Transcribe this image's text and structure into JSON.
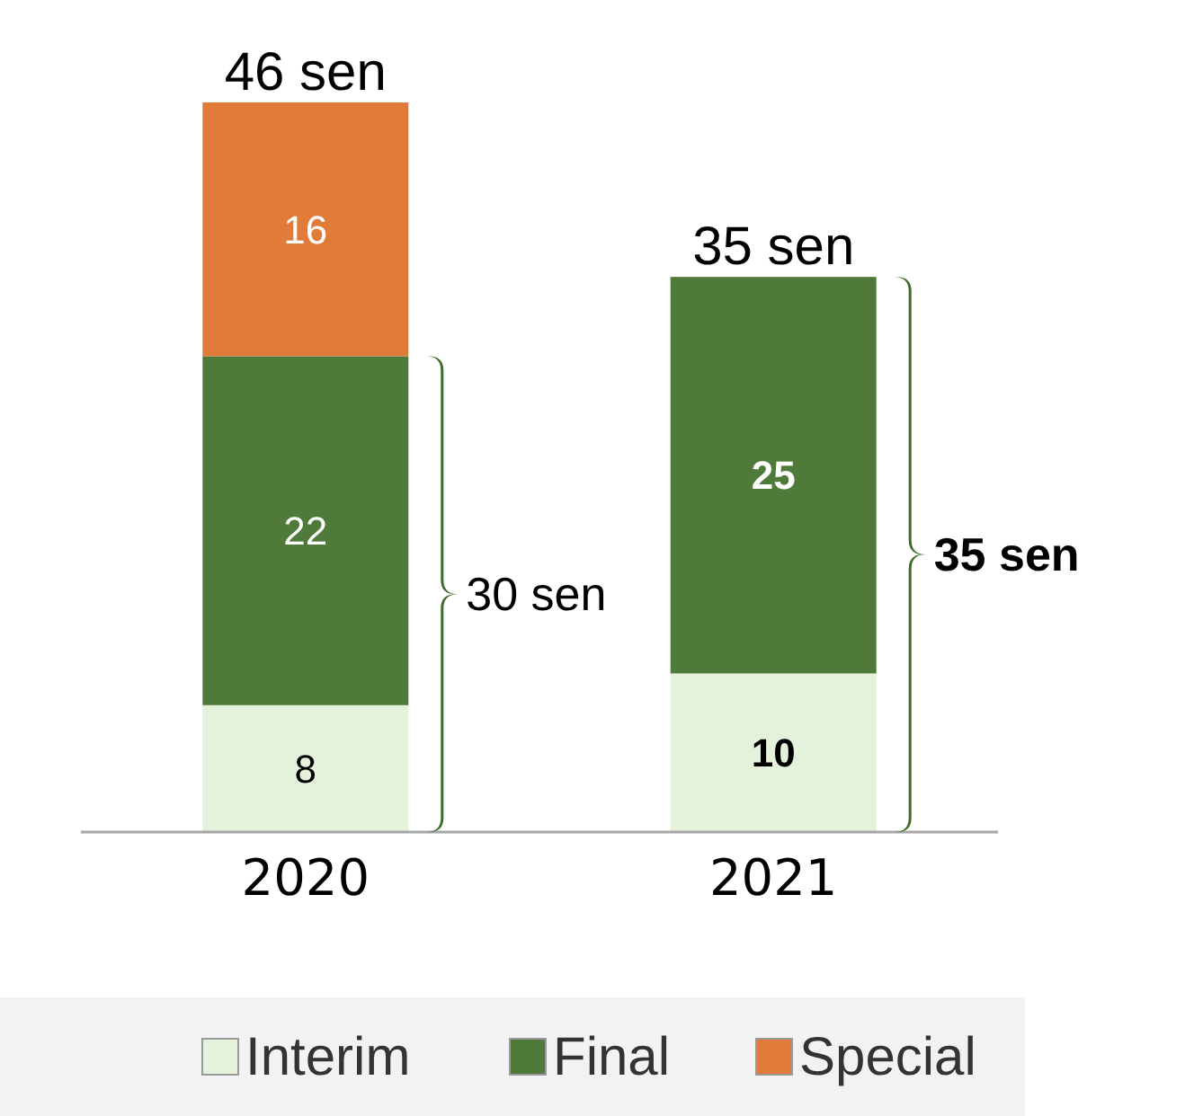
{
  "chart_data": {
    "type": "bar",
    "stacked": true,
    "categories": [
      "2020",
      "2021"
    ],
    "series": [
      {
        "name": "Interim",
        "color": "#e4f2dc",
        "values": [
          8,
          10
        ]
      },
      {
        "name": "Final",
        "color": "#4f7a3a",
        "values": [
          22,
          25
        ]
      },
      {
        "name": "Special",
        "color": "#e07b39",
        "values": [
          16,
          null
        ]
      }
    ],
    "data_labels": true,
    "totals": [
      "46 sen",
      "35 sen"
    ],
    "legend": "bottom",
    "annotations": [
      "30 sen",
      "35 sen"
    ]
  }
}
